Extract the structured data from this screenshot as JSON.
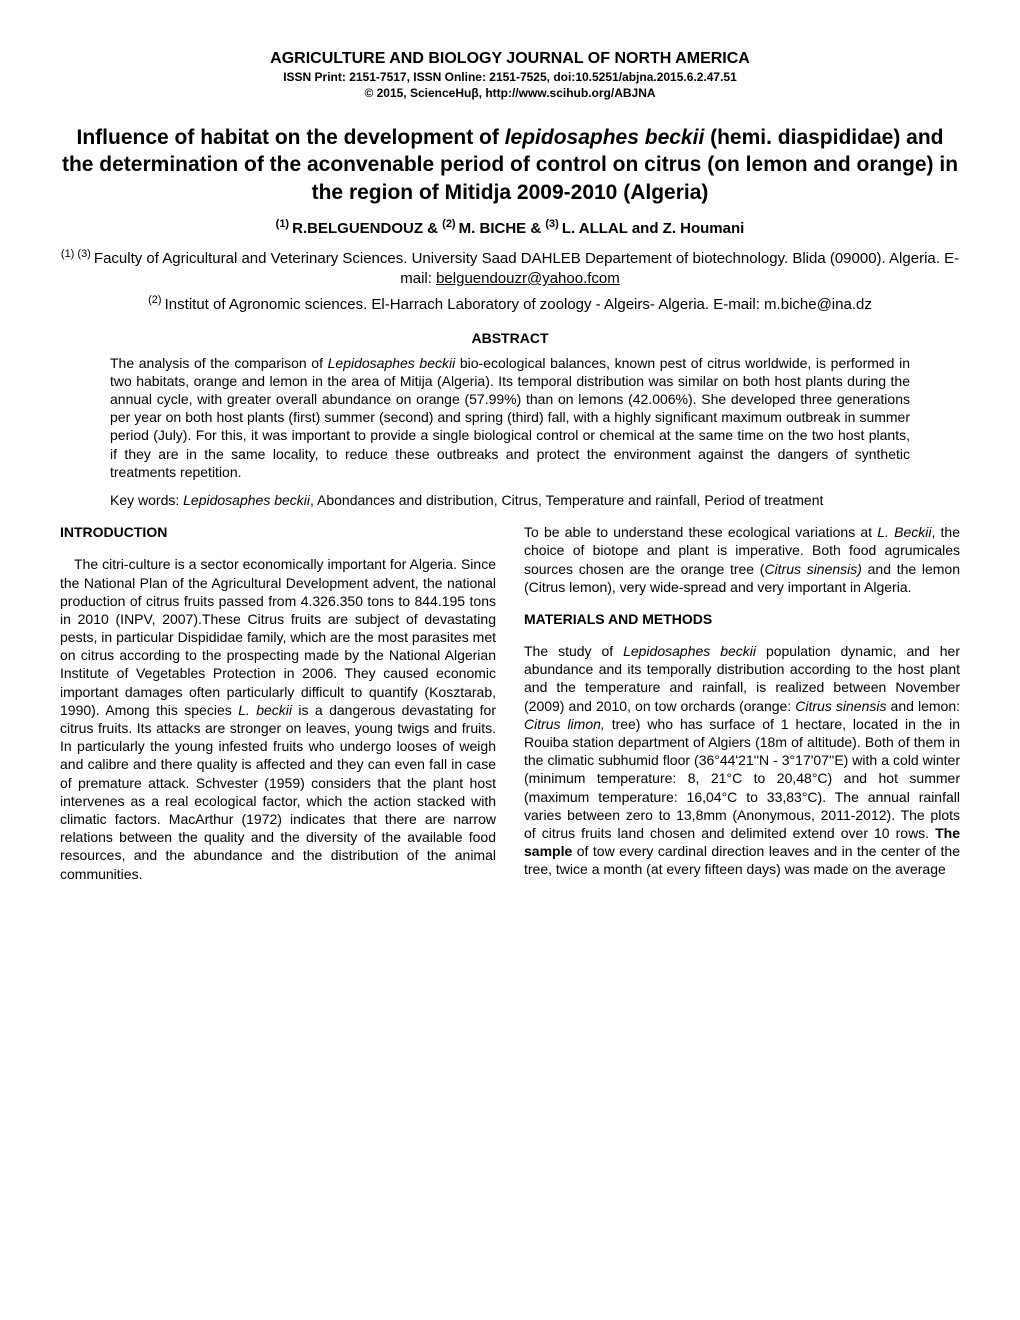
{
  "journal": {
    "title": "AGRICULTURE AND BIOLOGY JOURNAL OF NORTH AMERICA",
    "issn": "ISSN Print: 2151-7517, ISSN Online: 2151-7525, doi:10.5251/abjna.2015.6.2.47.51",
    "copyright": "© 2015, ScienceHuβ, http://www.scihub.org/ABJNA"
  },
  "article": {
    "title_pre": "Influence of habitat on the development of ",
    "title_italic": "lepidosaphes beckii",
    "title_post": " (hemi. diaspididae) and the determination of the aconvenable period of control on citrus (on lemon and orange) in the region of Mitidja 2009-2010 (Algeria)",
    "authors_sup1": "(1) ",
    "authors_1": "R.BELGUENDOUZ & ",
    "authors_sup2": "(2) ",
    "authors_2": "M. BICHE & ",
    "authors_sup3": "(3) ",
    "authors_3": "L. ALLAL and Z. Houmani",
    "affil1_sup": "(1) (3) ",
    "affil1_text": "Faculty of Agricultural and Veterinary Sciences. University Saad DAHLEB Departement of biotechnology. Blida (09000). Algeria. E-mail: ",
    "affil1_email": "belguendouzr@yahoo.fcom",
    "affil2_sup": "(2) ",
    "affil2_text": "Institut of Agronomic sciences.  El-Harrach Laboratory of zoology - Algeirs- Algeria. E-mail: m.biche@ina.dz",
    "abstract_heading": "ABSTRACT",
    "abstract_p1_pre": "The analysis of the comparison of ",
    "abstract_p1_it": "Lepidosaphes beckii",
    "abstract_p1_post": " bio-ecological balances, known pest of citrus worldwide, is performed in two habitats, orange and lemon in the area of Mitija (Algeria). Its temporal distribution was similar on both host plants during the annual cycle, with greater overall abundance on orange (57.99%) than on lemons (42.006%). She developed three generations per year on both host plants (first) summer (second) and spring (third) fall, with a highly significant maximum outbreak in summer period (July). For this, it was important to provide a single biological control or chemical at the same time on the two host plants, if they are in the same locality, to reduce these outbreaks and protect the environment against the dangers of synthetic treatments repetition.",
    "keywords_pre": " Key words: ",
    "keywords_it": "Lepidosaphes beckii",
    "keywords_post": ", Abondances and distribution, Citrus, Temperature and rainfall, Period of treatment"
  },
  "left_column": {
    "intro_heading": "INTRODUCTION",
    "intro_p1_pre": "The citri-culture is a sector economically important for Algeria. Since the National Plan of the Agricultural Development advent, the national production of citrus fruits passed from 4.326.350 tons to 844.195 tons in 2010 (INPV, 2007).These Citrus fruits are subject of devastating pests, in particular Dispididae family, which are the most parasites met on citrus according to the prospecting made by the National Algerian Institute of Vegetables Protection in 2006. They caused economic important damages often particularly difficult to quantify (Kosztarab, 1990). Among this species ",
    "intro_p1_it": "L. beckii",
    "intro_p1_post": " is a dangerous devastating for citrus fruits. Its attacks are stronger on leaves, young twigs and fruits. In particularly the young infested fruits who undergo looses of weigh and calibre and there quality is affected and they can even fall in case of premature attack. Schvester (1959) considers that the plant host intervenes as a real ecological factor, which the action stacked with climatic factors. MacArthur (1972) indicates that there are narrow relations between the quality and the diversity of the available food resources, and the abundance and the distribution of the animal communities."
  },
  "right_column": {
    "p1_pre": "To be able to understand these ecological variations at ",
    "p1_it": "L. Beckii",
    "p1_mid": ", the choice of biotope and plant is imperative. Both food agrumicales sources chosen are the orange tree (",
    "p1_it2": "Citrus sinensis)",
    "p1_post": " and the lemon (Citrus lemon), very wide-spread and very important in Algeria.",
    "methods_heading": "MATERIALS AND METHODS",
    "p2_pre": "The study of ",
    "p2_it": "Lepidosaphes beckii",
    "p2_mid": " population dynamic, and her abundance and its temporally distribution according to the host plant and the temperature and rainfall, is realized between November (2009) and 2010, on tow orchards (orange: ",
    "p2_it2": "Citrus sinensis",
    "p2_mid2": " and lemon: ",
    "p2_it3": "Citrus limon,",
    "p2_mid3": " tree) who has surface of 1 hectare, located in the in Rouiba station department of Algiers (18m of altitude). Both of them in the climatic subhumid floor (36°44'21''N - 3°17'07''E) with a cold winter (minimum temperature: 8, 21°C to 20,48°C) and hot summer (maximum temperature: 16,04°C to 33,83°C). The annual rainfall varies between zero to 13,8mm (Anonymous, 2011-2012). The plots of citrus fruits land chosen and delimited extend over 10 rows. ",
    "p2_bold": "The sample",
    "p2_post": " of tow every cardinal direction leaves and in the center of the tree, twice a month (at every fifteen days) was made on the average"
  }
}
